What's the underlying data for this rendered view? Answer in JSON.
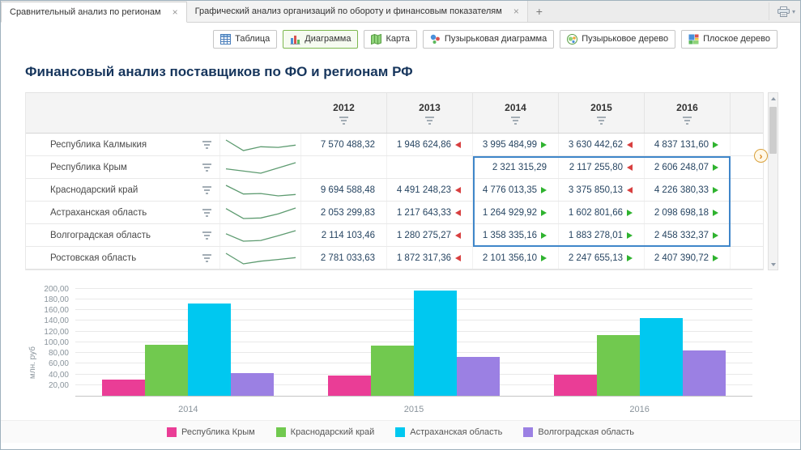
{
  "tabbar": {
    "new_tab_label": "+"
  },
  "tabs": [
    {
      "label": "Сравнительный анализ по регионам",
      "close": "×",
      "active": true
    },
    {
      "label": "Графический анализ организаций по обороту и финансовым показателям",
      "close": "×",
      "active": false
    }
  ],
  "icons": {
    "caret_down": "▾",
    "expand_arrow": "›"
  },
  "toolbar": {
    "buttons": [
      {
        "label": "Таблица",
        "icon": "table-icon",
        "active": false
      },
      {
        "label": "Диаграмма",
        "icon": "bar-chart-icon",
        "active": true
      },
      {
        "label": "Карта",
        "icon": "map-icon",
        "active": false
      },
      {
        "label": "Пузырьковая диаграмма",
        "icon": "bubble-chart-icon",
        "active": false
      },
      {
        "label": "Пузырьковое дерево",
        "icon": "bubble-tree-icon",
        "active": false
      },
      {
        "label": "Плоское дерево",
        "icon": "flat-tree-icon",
        "active": false
      }
    ]
  },
  "title": "Финансовый анализ поставщиков по ФО и регионам РФ",
  "table": {
    "years": [
      "2012",
      "2013",
      "2014",
      "2015",
      "2016"
    ],
    "selection": {
      "start_row": 1,
      "end_row": 4,
      "start_col": 2,
      "end_col": 4
    },
    "rows": [
      {
        "region": "Республика Калмыкия",
        "cells": [
          {
            "text": "7 570 488,32",
            "trend": null
          },
          {
            "text": "1 948 624,86",
            "trend": "down"
          },
          {
            "text": "3 995 484,99",
            "trend": "up"
          },
          {
            "text": "3 630 442,62",
            "trend": "down"
          },
          {
            "text": "4 837 131,60",
            "trend": "up"
          }
        ]
      },
      {
        "region": "Республика Крым",
        "cells": [
          {
            "text": "",
            "trend": null
          },
          {
            "text": "",
            "trend": null
          },
          {
            "text": "2 321 315,29",
            "trend": null
          },
          {
            "text": "2 117 255,80",
            "trend": "down"
          },
          {
            "text": "2 606 248,07",
            "trend": "up"
          }
        ]
      },
      {
        "region": "Краснодарский край",
        "cells": [
          {
            "text": "9 694 588,48",
            "trend": null
          },
          {
            "text": "4 491 248,23",
            "trend": "down"
          },
          {
            "text": "4 776 013,35",
            "trend": "up"
          },
          {
            "text": "3 375 850,13",
            "trend": "down"
          },
          {
            "text": "4 226 380,33",
            "trend": "up"
          }
        ]
      },
      {
        "region": "Астраханская область",
        "cells": [
          {
            "text": "2 053 299,83",
            "trend": null
          },
          {
            "text": "1 217 643,33",
            "trend": "down"
          },
          {
            "text": "1 264 929,92",
            "trend": "up"
          },
          {
            "text": "1 602 801,66",
            "trend": "up"
          },
          {
            "text": "2 098 698,18",
            "trend": "up"
          }
        ]
      },
      {
        "region": "Волгоградская область",
        "cells": [
          {
            "text": "2 114 103,46",
            "trend": null
          },
          {
            "text": "1 280 275,27",
            "trend": "down"
          },
          {
            "text": "1 358 335,16",
            "trend": "up"
          },
          {
            "text": "1 883 278,01",
            "trend": "up"
          },
          {
            "text": "2 458 332,37",
            "trend": "up"
          }
        ]
      },
      {
        "region": "Ростовская область",
        "cells": [
          {
            "text": "2 781 033,63",
            "trend": null
          },
          {
            "text": "1 872 317,36",
            "trend": "down"
          },
          {
            "text": "2 101 356,10",
            "trend": "up"
          },
          {
            "text": "2 247 655,13",
            "trend": "up"
          },
          {
            "text": "2 407 390,72",
            "trend": "up"
          }
        ]
      }
    ]
  },
  "chart_data": {
    "type": "bar",
    "title": "",
    "categories": [
      "2014",
      "2015",
      "2016"
    ],
    "series": [
      {
        "name": "Республика Крым",
        "color": "#ea3d96",
        "values": [
          30,
          38,
          40
        ]
      },
      {
        "name": "Краснодарский край",
        "color": "#71c94f",
        "values": [
          95,
          93,
          113
        ]
      },
      {
        "name": "Астраханская область",
        "color": "#00c8f0",
        "values": [
          172,
          196,
          145
        ]
      },
      {
        "name": "Волгоградская область",
        "color": "#9b80e3",
        "values": [
          42,
          72,
          85
        ]
      }
    ],
    "xlabel": "",
    "ylabel": "млн. руб",
    "ylim": [
      0,
      210
    ],
    "yticks": [
      "200,00",
      "180,00",
      "160,00",
      "140,00",
      "120,00",
      "100,00",
      "80,00",
      "60,00",
      "40,00",
      "20,00"
    ],
    "grid": true,
    "legend_position": "bottom"
  }
}
